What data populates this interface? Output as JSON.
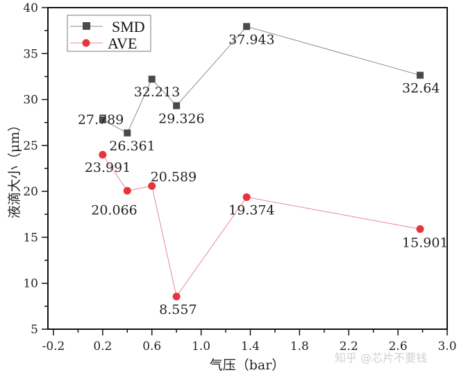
{
  "chart_data": {
    "type": "line",
    "title": "",
    "xlabel": "气压（bar）",
    "ylabel": "液滴大小（μm）",
    "xlim": [
      -0.245,
      3.0
    ],
    "ylim": [
      5,
      40
    ],
    "xticks": [
      -0.2,
      0.2,
      0.6,
      1.0,
      1.4,
      1.8,
      2.2,
      2.6,
      3.0
    ],
    "xtick_labels": [
      "-0.2",
      "0.2",
      "0.6",
      "1.0",
      "1.4",
      "1.8",
      "2.2",
      "2.6",
      "3.0"
    ],
    "yticks": [
      5,
      10,
      15,
      20,
      25,
      30,
      35,
      40
    ],
    "ytick_labels": [
      "5",
      "10",
      "15",
      "20",
      "25",
      "30",
      "35",
      "40"
    ],
    "grid": false,
    "legend_position": "top-left",
    "series": [
      {
        "name": "SMD",
        "color": "#4a4a4a",
        "line_color": "#8c8c8c",
        "marker": "square",
        "x": [
          0.2,
          0.4,
          0.6,
          0.8,
          1.37,
          2.78
        ],
        "values": [
          27.789,
          26.361,
          32.213,
          29.326,
          37.943,
          32.64
        ],
        "labels": [
          "27.789",
          "26.361",
          "32.213",
          "29.326",
          "37.943",
          "32.64"
        ]
      },
      {
        "name": "AVE",
        "color": "#e8333a",
        "line_color": "#e8898d",
        "marker": "circle",
        "x": [
          0.2,
          0.4,
          0.6,
          0.8,
          1.37,
          2.78
        ],
        "values": [
          23.991,
          20.066,
          20.589,
          8.557,
          19.374,
          15.901
        ],
        "labels": [
          "23.991",
          "20.066",
          "20.589",
          "8.557",
          "19.374",
          "15.901"
        ]
      }
    ]
  },
  "watermark": "知乎 @芯片不要钱"
}
